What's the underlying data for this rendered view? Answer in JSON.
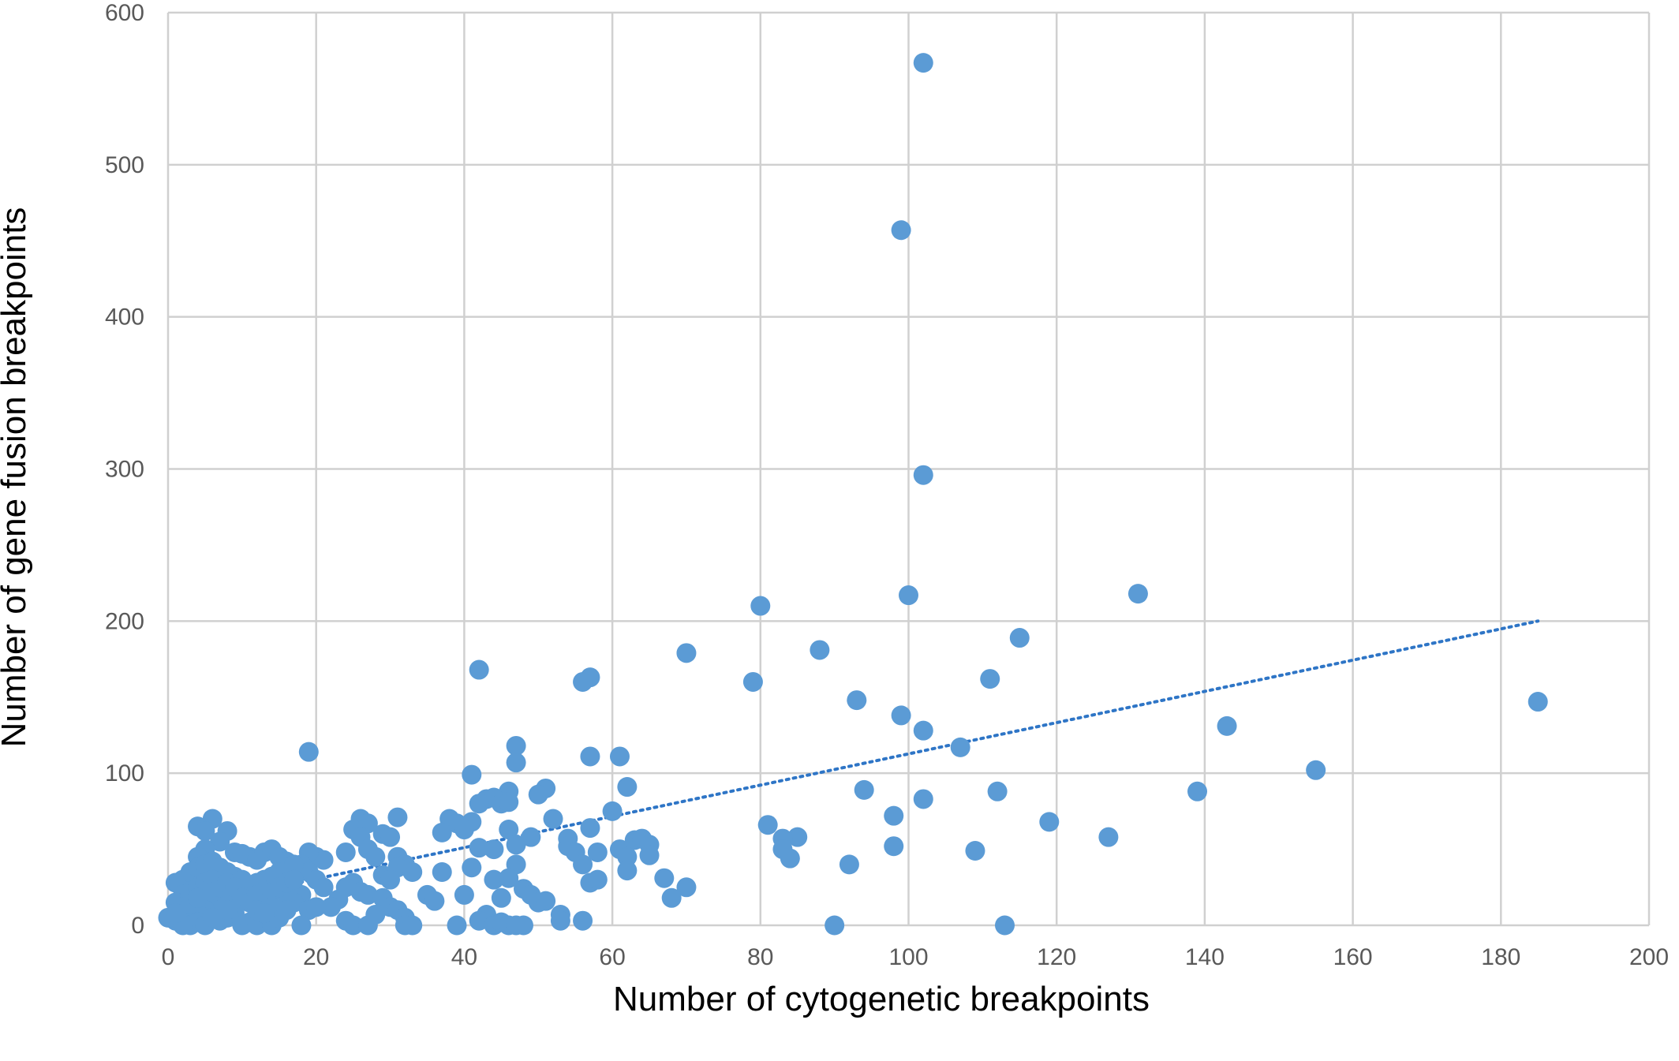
{
  "chart_data": {
    "type": "scatter",
    "title": "",
    "xlabel": "Number of cytogenetic breakpoints",
    "ylabel": "Number of gene fusion breakpoints",
    "xlim": [
      0,
      200
    ],
    "ylim": [
      0,
      600
    ],
    "x_ticks": [
      0,
      20,
      40,
      60,
      80,
      100,
      120,
      140,
      160,
      180,
      200
    ],
    "y_ticks": [
      0,
      100,
      200,
      300,
      400,
      500,
      600
    ],
    "grid": true,
    "marker_color": "#5b9bd5",
    "trendline": {
      "style": "dotted",
      "color": "#2e75c6",
      "from": [
        0,
        10
      ],
      "to": [
        185,
        200
      ]
    },
    "series": [
      {
        "points": [
          [
            102,
            567
          ],
          [
            99,
            457
          ],
          [
            102,
            296
          ],
          [
            100,
            217
          ],
          [
            131,
            218
          ],
          [
            80,
            210
          ],
          [
            115,
            189
          ],
          [
            88,
            181
          ],
          [
            70,
            179
          ],
          [
            42,
            168
          ],
          [
            57,
            163
          ],
          [
            56,
            160
          ],
          [
            79,
            160
          ],
          [
            111,
            162
          ],
          [
            93,
            148
          ],
          [
            185,
            147
          ],
          [
            99,
            138
          ],
          [
            143,
            131
          ],
          [
            102,
            128
          ],
          [
            107,
            117
          ],
          [
            19,
            114
          ],
          [
            47,
            118
          ],
          [
            47,
            107
          ],
          [
            57,
            111
          ],
          [
            61,
            111
          ],
          [
            155,
            102
          ],
          [
            41,
            99
          ],
          [
            62,
            91
          ],
          [
            94,
            89
          ],
          [
            112,
            88
          ],
          [
            139,
            88
          ],
          [
            102,
            83
          ],
          [
            51,
            90
          ],
          [
            50,
            86
          ],
          [
            46,
            88
          ],
          [
            44,
            84
          ],
          [
            43,
            83
          ],
          [
            45,
            80
          ],
          [
            42,
            80
          ],
          [
            46,
            81
          ],
          [
            60,
            75
          ],
          [
            98,
            72
          ],
          [
            52,
            70
          ],
          [
            119,
            68
          ],
          [
            81,
            66
          ],
          [
            57,
            64
          ],
          [
            46,
            63
          ],
          [
            38,
            70
          ],
          [
            39,
            67
          ],
          [
            41,
            68
          ],
          [
            40,
            63
          ],
          [
            37,
            61
          ],
          [
            85,
            58
          ],
          [
            127,
            58
          ],
          [
            83,
            57
          ],
          [
            54,
            57
          ],
          [
            49,
            58
          ],
          [
            63,
            56
          ],
          [
            64,
            57
          ],
          [
            65,
            53
          ],
          [
            47,
            53
          ],
          [
            44,
            50
          ],
          [
            42,
            51
          ],
          [
            83,
            50
          ],
          [
            98,
            52
          ],
          [
            109,
            49
          ],
          [
            54,
            52
          ],
          [
            55,
            48
          ],
          [
            58,
            48
          ],
          [
            56,
            40
          ],
          [
            61,
            50
          ],
          [
            62,
            45
          ],
          [
            65,
            46
          ],
          [
            47,
            40
          ],
          [
            84,
            44
          ],
          [
            92,
            40
          ],
          [
            62,
            36
          ],
          [
            67,
            31
          ],
          [
            57,
            28
          ],
          [
            58,
            30
          ],
          [
            70,
            25
          ],
          [
            68,
            18
          ],
          [
            41,
            38
          ],
          [
            37,
            35
          ],
          [
            46,
            31
          ],
          [
            44,
            30
          ],
          [
            48,
            24
          ],
          [
            49,
            20
          ],
          [
            45,
            18
          ],
          [
            40,
            20
          ],
          [
            50,
            15
          ],
          [
            51,
            16
          ],
          [
            35,
            20
          ],
          [
            36,
            16
          ],
          [
            53,
            7
          ],
          [
            53,
            3
          ],
          [
            56,
            3
          ],
          [
            39,
            0
          ],
          [
            43,
            7
          ],
          [
            42,
            3
          ],
          [
            44,
            0
          ],
          [
            45,
            2
          ],
          [
            46,
            0
          ],
          [
            47,
            0
          ],
          [
            48,
            0
          ],
          [
            90,
            0
          ],
          [
            113,
            0
          ],
          [
            26,
            70
          ],
          [
            27,
            67
          ],
          [
            25,
            63
          ],
          [
            29,
            60
          ],
          [
            31,
            71
          ],
          [
            30,
            58
          ],
          [
            26,
            58
          ],
          [
            24,
            48
          ],
          [
            27,
            50
          ],
          [
            28,
            45
          ],
          [
            31,
            45
          ],
          [
            32,
            40
          ],
          [
            31,
            38
          ],
          [
            33,
            35
          ],
          [
            29,
            33
          ],
          [
            30,
            30
          ],
          [
            25,
            28
          ],
          [
            24,
            25
          ],
          [
            26,
            22
          ],
          [
            27,
            20
          ],
          [
            29,
            18
          ],
          [
            30,
            12
          ],
          [
            31,
            10
          ],
          [
            32,
            5
          ],
          [
            24,
            3
          ],
          [
            25,
            0
          ],
          [
            27,
            0
          ],
          [
            32,
            0
          ],
          [
            33,
            0
          ],
          [
            28,
            7
          ],
          [
            23,
            17
          ],
          [
            22,
            12
          ],
          [
            20,
            45
          ],
          [
            21,
            43
          ],
          [
            19,
            48
          ],
          [
            18,
            40
          ],
          [
            19,
            35
          ],
          [
            20,
            30
          ],
          [
            21,
            25
          ],
          [
            18,
            20
          ],
          [
            17,
            15
          ],
          [
            19,
            10
          ],
          [
            20,
            12
          ],
          [
            18,
            0
          ],
          [
            16,
            20
          ],
          [
            6,
            70
          ],
          [
            4,
            65
          ],
          [
            5,
            62
          ],
          [
            8,
            62
          ],
          [
            7,
            55
          ],
          [
            5,
            50
          ],
          [
            4,
            45
          ],
          [
            9,
            48
          ],
          [
            10,
            47
          ],
          [
            11,
            45
          ],
          [
            12,
            43
          ],
          [
            13,
            48
          ],
          [
            14,
            50
          ],
          [
            15,
            45
          ],
          [
            16,
            42
          ],
          [
            17,
            40
          ],
          [
            15,
            35
          ],
          [
            14,
            32
          ],
          [
            13,
            30
          ],
          [
            12,
            28
          ],
          [
            11,
            25
          ],
          [
            10,
            22
          ],
          [
            9,
            20
          ],
          [
            8,
            18
          ],
          [
            7,
            15
          ],
          [
            6,
            12
          ],
          [
            5,
            10
          ],
          [
            4,
            8
          ],
          [
            3,
            6
          ],
          [
            2,
            4
          ],
          [
            1,
            3
          ],
          [
            0,
            5
          ],
          [
            3,
            0
          ],
          [
            4,
            2
          ],
          [
            5,
            0
          ],
          [
            7,
            3
          ],
          [
            8,
            5
          ],
          [
            9,
            8
          ],
          [
            10,
            0
          ],
          [
            11,
            2
          ],
          [
            12,
            0
          ],
          [
            13,
            3
          ],
          [
            14,
            0
          ],
          [
            15,
            5
          ],
          [
            1,
            28
          ],
          [
            2,
            30
          ],
          [
            3,
            35
          ],
          [
            4,
            38
          ],
          [
            5,
            40
          ],
          [
            6,
            42
          ],
          [
            7,
            38
          ],
          [
            8,
            35
          ],
          [
            9,
            32
          ],
          [
            10,
            30
          ],
          [
            2,
            20
          ],
          [
            3,
            22
          ],
          [
            4,
            25
          ],
          [
            5,
            28
          ],
          [
            6,
            30
          ],
          [
            1,
            15
          ],
          [
            2,
            12
          ],
          [
            3,
            14
          ],
          [
            4,
            18
          ],
          [
            6,
            22
          ],
          [
            7,
            25
          ],
          [
            8,
            28
          ],
          [
            9,
            25
          ],
          [
            10,
            18
          ],
          [
            11,
            15
          ],
          [
            12,
            20
          ],
          [
            13,
            18
          ],
          [
            14,
            22
          ],
          [
            15,
            25
          ],
          [
            16,
            28
          ],
          [
            17,
            30
          ],
          [
            2,
            0
          ],
          [
            1,
            8
          ],
          [
            6,
            5
          ],
          [
            8,
            10
          ],
          [
            12,
            10
          ],
          [
            14,
            12
          ],
          [
            16,
            10
          ],
          [
            13,
            8
          ]
        ]
      }
    ]
  }
}
